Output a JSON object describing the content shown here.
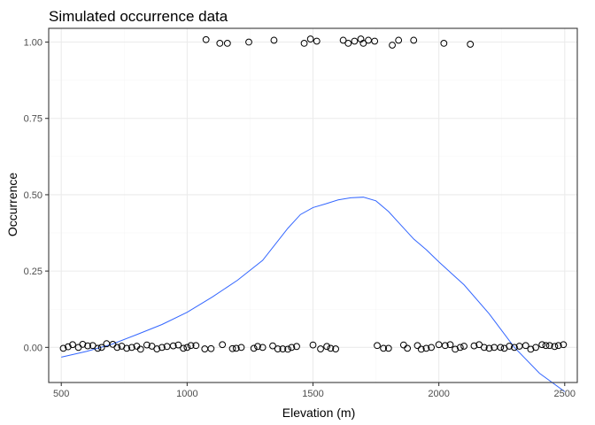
{
  "chart_data": {
    "type": "scatter",
    "title": "Simulated occurrence data",
    "xlabel": "Elevation (m)",
    "ylabel": "Occurrence",
    "xlim": [
      450,
      2550
    ],
    "ylim": [
      -0.115,
      1.045
    ],
    "x_ticks": [
      500,
      1000,
      1500,
      2000,
      2500
    ],
    "x_tick_labels": [
      "500",
      "1000",
      "1500",
      "2000",
      "2500"
    ],
    "y_ticks": [
      0,
      0.25,
      0.5,
      0.75,
      1
    ],
    "y_tick_labels": [
      "0.00",
      "0.25",
      "0.50",
      "0.75",
      "1.00"
    ],
    "grid": true,
    "points": [
      {
        "x": 508,
        "y": -0.003
      },
      {
        "x": 527,
        "y": 0.002
      },
      {
        "x": 545,
        "y": 0.009
      },
      {
        "x": 568,
        "y": 0.0
      },
      {
        "x": 585,
        "y": 0.01
      },
      {
        "x": 605,
        "y": 0.005
      },
      {
        "x": 625,
        "y": 0.006
      },
      {
        "x": 645,
        "y": -0.003
      },
      {
        "x": 660,
        "y": 0.0
      },
      {
        "x": 680,
        "y": 0.012
      },
      {
        "x": 705,
        "y": 0.01
      },
      {
        "x": 722,
        "y": 0.0
      },
      {
        "x": 740,
        "y": 0.004
      },
      {
        "x": 760,
        "y": -0.003
      },
      {
        "x": 780,
        "y": 0.0
      },
      {
        "x": 800,
        "y": 0.004
      },
      {
        "x": 815,
        "y": -0.006
      },
      {
        "x": 840,
        "y": 0.008
      },
      {
        "x": 860,
        "y": 0.004
      },
      {
        "x": 880,
        "y": -0.005
      },
      {
        "x": 900,
        "y": 0.0
      },
      {
        "x": 920,
        "y": 0.003
      },
      {
        "x": 945,
        "y": 0.005
      },
      {
        "x": 965,
        "y": 0.008
      },
      {
        "x": 985,
        "y": -0.003
      },
      {
        "x": 1000,
        "y": 0.0
      },
      {
        "x": 1015,
        "y": 0.006
      },
      {
        "x": 1035,
        "y": 0.006
      },
      {
        "x": 1070,
        "y": -0.005
      },
      {
        "x": 1095,
        "y": -0.004
      },
      {
        "x": 1140,
        "y": 0.009
      },
      {
        "x": 1180,
        "y": -0.004
      },
      {
        "x": 1195,
        "y": -0.003
      },
      {
        "x": 1215,
        "y": 0.0
      },
      {
        "x": 1265,
        "y": -0.003
      },
      {
        "x": 1280,
        "y": 0.003
      },
      {
        "x": 1300,
        "y": 0.0
      },
      {
        "x": 1340,
        "y": 0.005
      },
      {
        "x": 1360,
        "y": -0.005
      },
      {
        "x": 1380,
        "y": -0.005
      },
      {
        "x": 1400,
        "y": -0.006
      },
      {
        "x": 1415,
        "y": 0.0
      },
      {
        "x": 1435,
        "y": 0.003
      },
      {
        "x": 1500,
        "y": 0.008
      },
      {
        "x": 1530,
        "y": -0.005
      },
      {
        "x": 1555,
        "y": 0.003
      },
      {
        "x": 1570,
        "y": -0.003
      },
      {
        "x": 1590,
        "y": -0.005
      },
      {
        "x": 1755,
        "y": 0.006
      },
      {
        "x": 1780,
        "y": -0.003
      },
      {
        "x": 1800,
        "y": -0.003
      },
      {
        "x": 1860,
        "y": 0.008
      },
      {
        "x": 1875,
        "y": -0.003
      },
      {
        "x": 1915,
        "y": 0.006
      },
      {
        "x": 1930,
        "y": -0.006
      },
      {
        "x": 1950,
        "y": -0.003
      },
      {
        "x": 1970,
        "y": 0.0
      },
      {
        "x": 2000,
        "y": 0.009
      },
      {
        "x": 2025,
        "y": 0.006
      },
      {
        "x": 2045,
        "y": 0.009
      },
      {
        "x": 2065,
        "y": -0.006
      },
      {
        "x": 2085,
        "y": 0.0
      },
      {
        "x": 2100,
        "y": 0.004
      },
      {
        "x": 2140,
        "y": 0.005
      },
      {
        "x": 2160,
        "y": 0.009
      },
      {
        "x": 2180,
        "y": 0.0
      },
      {
        "x": 2200,
        "y": -0.003
      },
      {
        "x": 2220,
        "y": 0.0
      },
      {
        "x": 2245,
        "y": 0.0
      },
      {
        "x": 2260,
        "y": -0.003
      },
      {
        "x": 2280,
        "y": 0.004
      },
      {
        "x": 2300,
        "y": 0.0
      },
      {
        "x": 2320,
        "y": 0.004
      },
      {
        "x": 2345,
        "y": 0.006
      },
      {
        "x": 2365,
        "y": -0.006
      },
      {
        "x": 2385,
        "y": 0.0
      },
      {
        "x": 2410,
        "y": 0.009
      },
      {
        "x": 2425,
        "y": 0.006
      },
      {
        "x": 2440,
        "y": 0.006
      },
      {
        "x": 2460,
        "y": 0.003
      },
      {
        "x": 2475,
        "y": 0.006
      },
      {
        "x": 2495,
        "y": 0.009
      },
      {
        "x": 1075,
        "y": 1.008
      },
      {
        "x": 1130,
        "y": 0.996
      },
      {
        "x": 1160,
        "y": 0.996
      },
      {
        "x": 1245,
        "y": 1.0
      },
      {
        "x": 1345,
        "y": 1.006
      },
      {
        "x": 1465,
        "y": 0.996
      },
      {
        "x": 1490,
        "y": 1.01
      },
      {
        "x": 1515,
        "y": 1.003
      },
      {
        "x": 1620,
        "y": 1.006
      },
      {
        "x": 1640,
        "y": 0.996
      },
      {
        "x": 1665,
        "y": 1.003
      },
      {
        "x": 1690,
        "y": 1.01
      },
      {
        "x": 1700,
        "y": 0.996
      },
      {
        "x": 1720,
        "y": 1.006
      },
      {
        "x": 1745,
        "y": 1.003
      },
      {
        "x": 1815,
        "y": 0.99
      },
      {
        "x": 1840,
        "y": 1.006
      },
      {
        "x": 1900,
        "y": 1.006
      },
      {
        "x": 2020,
        "y": 0.996
      },
      {
        "x": 2125,
        "y": 0.993
      }
    ],
    "smooth_line": {
      "color": "#3366FF",
      "x": [
        500,
        600,
        700,
        800,
        900,
        1000,
        1100,
        1200,
        1300,
        1400,
        1450,
        1500,
        1550,
        1600,
        1650,
        1700,
        1750,
        1800,
        1850,
        1900,
        1950,
        2000,
        2100,
        2200,
        2300,
        2400,
        2500
      ],
      "y": [
        -0.032,
        -0.013,
        0.01,
        0.042,
        0.075,
        0.115,
        0.165,
        0.22,
        0.285,
        0.39,
        0.435,
        0.458,
        0.47,
        0.483,
        0.49,
        0.492,
        0.48,
        0.445,
        0.4,
        0.355,
        0.32,
        0.28,
        0.205,
        0.11,
        0.0,
        -0.085,
        -0.145
      ]
    }
  }
}
